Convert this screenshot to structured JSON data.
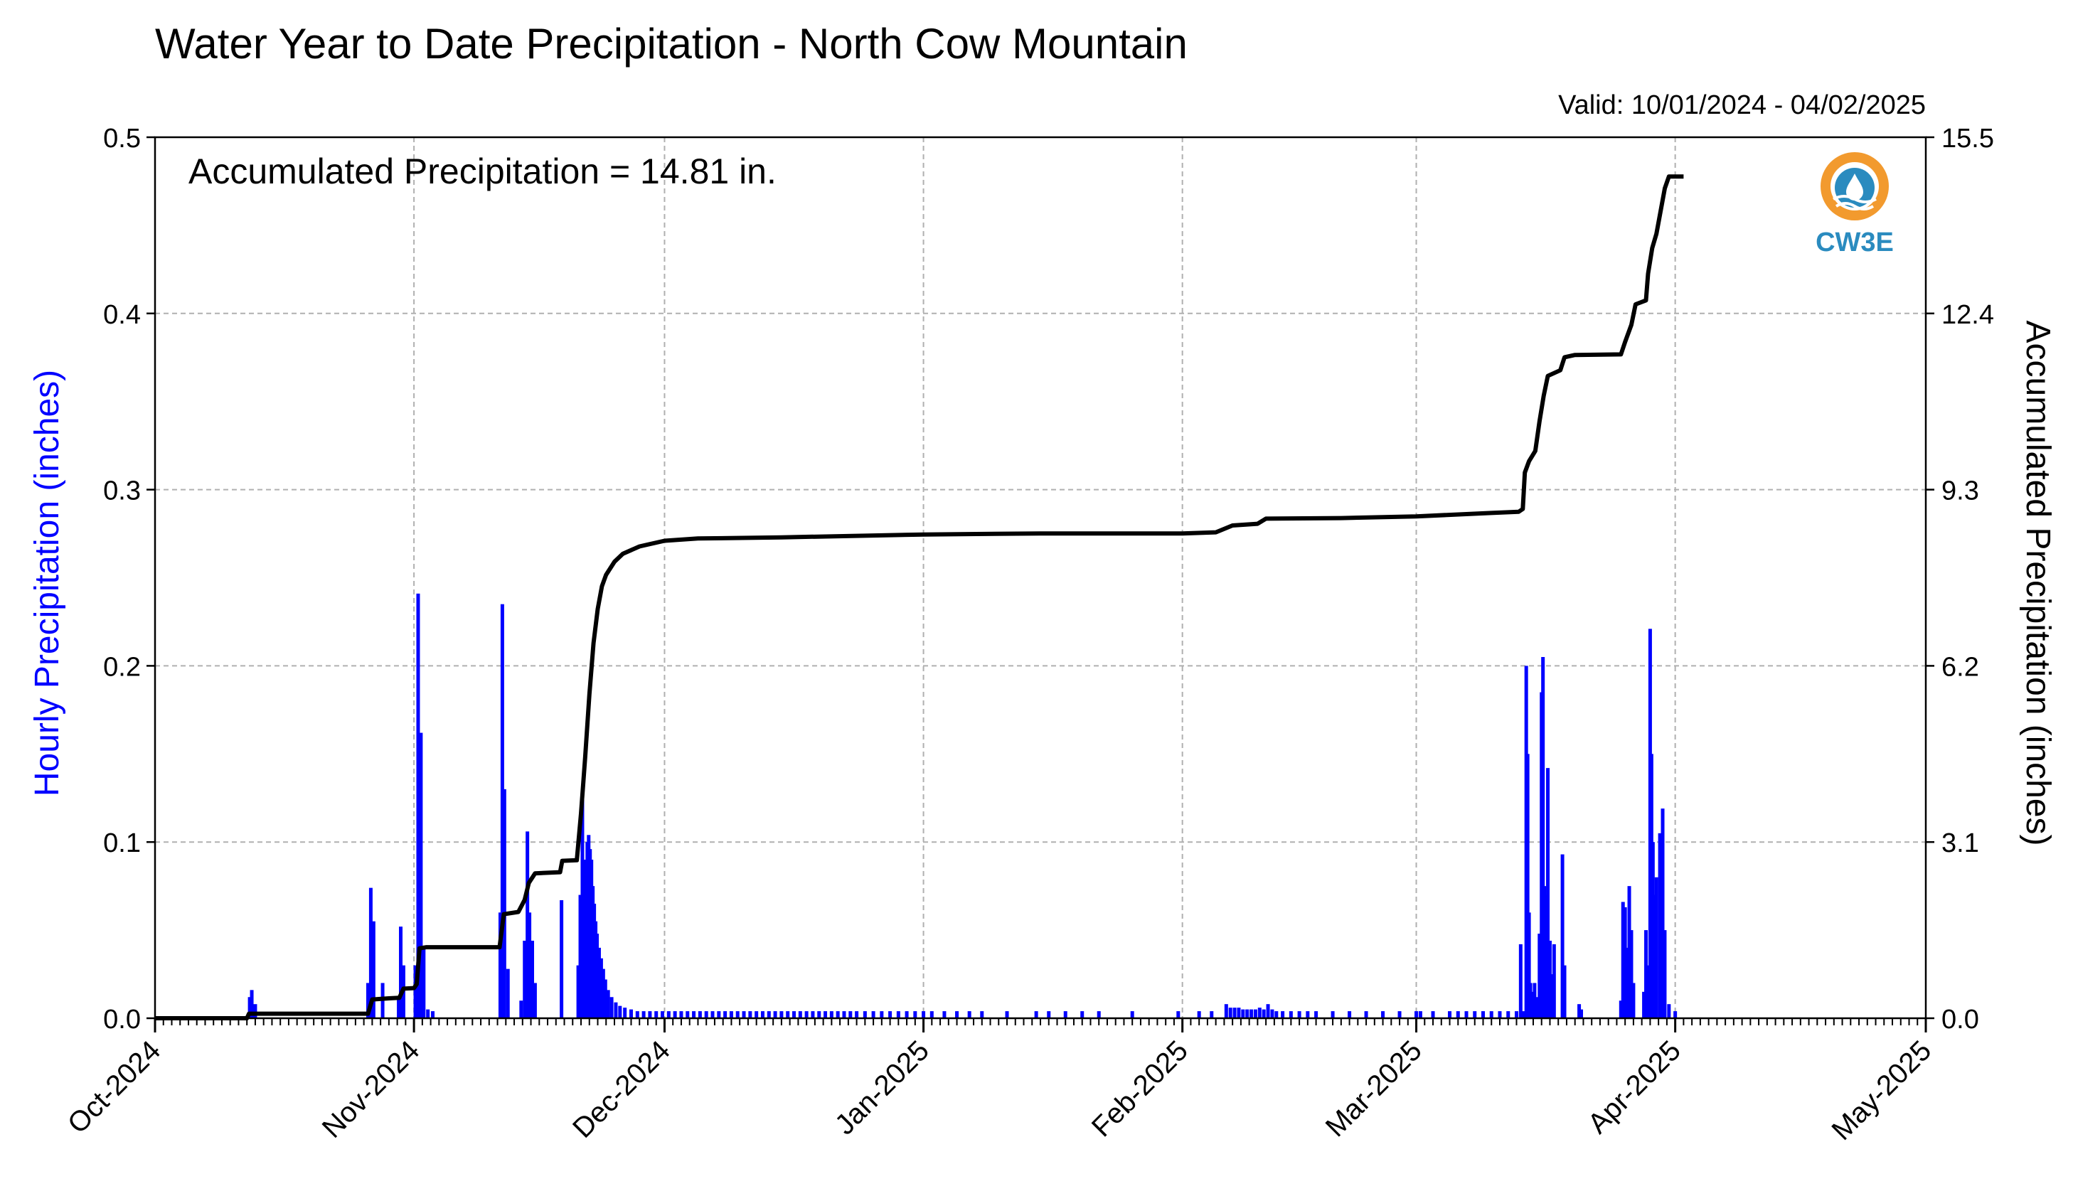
{
  "colors": {
    "hourly": "#0000ff",
    "accumulated": "#000000",
    "grid": "#b0b0b0",
    "logo_orange": "#f29a2e",
    "logo_blue": "#2a8bbf"
  },
  "chart_data": {
    "type": "bar+line",
    "title": "Water Year to Date Precipitation - North Cow Mountain",
    "subtitle": "Valid: 10/01/2024 - 04/02/2025",
    "annotation": "Accumulated Precipitation = 14.81 in.",
    "ylabel_left": "Hourly Precipitation (inches)",
    "ylabel_right": "Accumulated Precipitation (inches)",
    "x_range": [
      "2024-10-01",
      "2025-05-01"
    ],
    "x_tick_labels": [
      "Oct-2024",
      "Nov-2024",
      "Dec-2024",
      "Jan-2025",
      "Feb-2025",
      "Mar-2025",
      "Apr-2025",
      "May-2025"
    ],
    "x_tick_dates": [
      "2024-10-01",
      "2024-11-01",
      "2024-12-01",
      "2025-01-01",
      "2025-02-01",
      "2025-03-01",
      "2025-04-01",
      "2025-05-01"
    ],
    "ylim_left": [
      0,
      0.5
    ],
    "yticks_left": [
      "0.0",
      "0.1",
      "0.2",
      "0.3",
      "0.4",
      "0.5"
    ],
    "yticks_left_values": [
      0,
      0.1,
      0.2,
      0.3,
      0.4,
      0.5
    ],
    "ylim_right": [
      0,
      15.5
    ],
    "yticks_right": [
      "0.0",
      "3.1",
      "6.2",
      "9.3",
      "12.4",
      "15.5"
    ],
    "yticks_right_values": [
      0,
      3.1,
      6.2,
      9.3,
      12.4,
      15.5
    ],
    "grid": true,
    "hourly_series": {
      "name": "Hourly Precipitation",
      "points": [
        [
          "2024-10-12T08:00",
          0.012
        ],
        [
          "2024-10-12T14:00",
          0.016
        ],
        [
          "2024-10-13T00:00",
          0.008
        ],
        [
          "2024-10-26T12:00",
          0.02
        ],
        [
          "2024-10-26T20:00",
          0.074
        ],
        [
          "2024-10-27T04:00",
          0.055
        ],
        [
          "2024-10-28T06:00",
          0.02
        ],
        [
          "2024-10-30T04:00",
          0.012
        ],
        [
          "2024-10-30T10:00",
          0.052
        ],
        [
          "2024-10-30T18:00",
          0.03
        ],
        [
          "2024-11-01T04:00",
          0.03
        ],
        [
          "2024-11-01T12:00",
          0.241
        ],
        [
          "2024-11-01T20:00",
          0.162
        ],
        [
          "2024-11-02T04:00",
          0.04
        ],
        [
          "2024-11-02T16:00",
          0.005
        ],
        [
          "2024-11-03T06:00",
          0.004
        ],
        [
          "2024-11-11T08:00",
          0.06
        ],
        [
          "2024-11-11T14:00",
          0.235
        ],
        [
          "2024-11-11T20:00",
          0.13
        ],
        [
          "2024-11-12T06:00",
          0.028
        ],
        [
          "2024-11-13T20:00",
          0.01
        ],
        [
          "2024-11-14T06:00",
          0.044
        ],
        [
          "2024-11-14T14:00",
          0.106
        ],
        [
          "2024-11-14T20:00",
          0.06
        ],
        [
          "2024-11-15T04:00",
          0.044
        ],
        [
          "2024-11-15T12:00",
          0.02
        ],
        [
          "2024-11-18T16:00",
          0.067
        ],
        [
          "2024-11-20T16:00",
          0.03
        ],
        [
          "2024-11-20T22:00",
          0.07
        ],
        [
          "2024-11-21T04:00",
          0.125
        ],
        [
          "2024-11-21T10:00",
          0.09
        ],
        [
          "2024-11-21T14:00",
          0.06
        ],
        [
          "2024-11-21T18:00",
          0.1
        ],
        [
          "2024-11-21T22:00",
          0.104
        ],
        [
          "2024-11-22T02:00",
          0.096
        ],
        [
          "2024-11-22T06:00",
          0.09
        ],
        [
          "2024-11-22T10:00",
          0.075
        ],
        [
          "2024-11-22T14:00",
          0.065
        ],
        [
          "2024-11-22T18:00",
          0.055
        ],
        [
          "2024-11-22T22:00",
          0.048
        ],
        [
          "2024-11-23T04:00",
          0.04
        ],
        [
          "2024-11-23T10:00",
          0.034
        ],
        [
          "2024-11-23T16:00",
          0.028
        ],
        [
          "2024-11-23T22:00",
          0.022
        ],
        [
          "2024-11-24T06:00",
          0.016
        ],
        [
          "2024-11-24T16:00",
          0.012
        ],
        [
          "2024-11-25T04:00",
          0.009
        ],
        [
          "2024-11-25T16:00",
          0.007
        ],
        [
          "2024-11-26T06:00",
          0.006
        ],
        [
          "2024-11-27T00:00",
          0.005
        ],
        [
          "2024-11-27T18:00",
          0.004
        ],
        [
          "2024-11-28T12:00",
          0.004
        ],
        [
          "2024-11-29T06:00",
          0.004
        ],
        [
          "2024-11-30T00:00",
          0.004
        ],
        [
          "2024-11-30T18:00",
          0.004
        ],
        [
          "2024-12-01T12:00",
          0.004
        ],
        [
          "2024-12-02T06:00",
          0.004
        ],
        [
          "2024-12-03T00:00",
          0.004
        ],
        [
          "2024-12-03T18:00",
          0.004
        ],
        [
          "2024-12-04T12:00",
          0.004
        ],
        [
          "2024-12-05T06:00",
          0.004
        ],
        [
          "2024-12-06T00:00",
          0.004
        ],
        [
          "2024-12-06T18:00",
          0.004
        ],
        [
          "2024-12-07T12:00",
          0.004
        ],
        [
          "2024-12-08T06:00",
          0.004
        ],
        [
          "2024-12-09T00:00",
          0.004
        ],
        [
          "2024-12-09T18:00",
          0.004
        ],
        [
          "2024-12-10T12:00",
          0.004
        ],
        [
          "2024-12-11T06:00",
          0.004
        ],
        [
          "2024-12-12T00:00",
          0.004
        ],
        [
          "2024-12-12T18:00",
          0.004
        ],
        [
          "2024-12-13T12:00",
          0.004
        ],
        [
          "2024-12-14T06:00",
          0.004
        ],
        [
          "2024-12-15T00:00",
          0.004
        ],
        [
          "2024-12-15T18:00",
          0.004
        ],
        [
          "2024-12-16T12:00",
          0.004
        ],
        [
          "2024-12-17T06:00",
          0.004
        ],
        [
          "2024-12-18T00:00",
          0.004
        ],
        [
          "2024-12-18T18:00",
          0.004
        ],
        [
          "2024-12-19T12:00",
          0.004
        ],
        [
          "2024-12-20T06:00",
          0.004
        ],
        [
          "2024-12-21T00:00",
          0.004
        ],
        [
          "2024-12-21T18:00",
          0.004
        ],
        [
          "2024-12-22T12:00",
          0.004
        ],
        [
          "2024-12-23T06:00",
          0.004
        ],
        [
          "2024-12-24T00:00",
          0.004
        ],
        [
          "2024-12-25T00:00",
          0.004
        ],
        [
          "2024-12-26T00:00",
          0.004
        ],
        [
          "2024-12-27T00:00",
          0.004
        ],
        [
          "2024-12-28T00:00",
          0.004
        ],
        [
          "2024-12-29T00:00",
          0.004
        ],
        [
          "2024-12-30T00:00",
          0.004
        ],
        [
          "2024-12-31T00:00",
          0.004
        ],
        [
          "2025-01-01T00:00",
          0.004
        ],
        [
          "2025-01-02T00:00",
          0.004
        ],
        [
          "2025-01-03T12:00",
          0.004
        ],
        [
          "2025-01-05T00:00",
          0.004
        ],
        [
          "2025-01-06T12:00",
          0.004
        ],
        [
          "2025-01-08T00:00",
          0.004
        ],
        [
          "2025-01-11T00:00",
          0.004
        ],
        [
          "2025-01-14T12:00",
          0.004
        ],
        [
          "2025-01-16T00:00",
          0.004
        ],
        [
          "2025-01-18T00:00",
          0.004
        ],
        [
          "2025-01-20T00:00",
          0.004
        ],
        [
          "2025-01-22T00:00",
          0.004
        ],
        [
          "2025-01-26T00:00",
          0.004
        ],
        [
          "2025-01-31T12:00",
          0.004
        ],
        [
          "2025-02-03T00:00",
          0.004
        ],
        [
          "2025-02-04T12:00",
          0.004
        ],
        [
          "2025-02-06T06:00",
          0.008
        ],
        [
          "2025-02-06T18:00",
          0.006
        ],
        [
          "2025-02-07T06:00",
          0.006
        ],
        [
          "2025-02-07T18:00",
          0.006
        ],
        [
          "2025-02-08T06:00",
          0.005
        ],
        [
          "2025-02-08T18:00",
          0.005
        ],
        [
          "2025-02-09T06:00",
          0.005
        ],
        [
          "2025-02-09T18:00",
          0.005
        ],
        [
          "2025-02-10T06:00",
          0.006
        ],
        [
          "2025-02-10T18:00",
          0.005
        ],
        [
          "2025-02-11T06:00",
          0.008
        ],
        [
          "2025-02-11T18:00",
          0.005
        ],
        [
          "2025-02-12T06:00",
          0.004
        ],
        [
          "2025-02-13T00:00",
          0.004
        ],
        [
          "2025-02-14T00:00",
          0.004
        ],
        [
          "2025-02-15T00:00",
          0.004
        ],
        [
          "2025-02-16T00:00",
          0.004
        ],
        [
          "2025-02-17T00:00",
          0.004
        ],
        [
          "2025-02-19T00:00",
          0.004
        ],
        [
          "2025-02-21T00:00",
          0.004
        ],
        [
          "2025-02-23T00:00",
          0.004
        ],
        [
          "2025-02-25T00:00",
          0.004
        ],
        [
          "2025-02-27T00:00",
          0.004
        ],
        [
          "2025-03-01T00:00",
          0.004
        ],
        [
          "2025-03-01T12:00",
          0.004
        ],
        [
          "2025-03-03T00:00",
          0.004
        ],
        [
          "2025-03-05T00:00",
          0.004
        ],
        [
          "2025-03-06T00:00",
          0.004
        ],
        [
          "2025-03-07T00:00",
          0.004
        ],
        [
          "2025-03-08T00:00",
          0.004
        ],
        [
          "2025-03-09T00:00",
          0.004
        ],
        [
          "2025-03-10T00:00",
          0.004
        ],
        [
          "2025-03-11T00:00",
          0.004
        ],
        [
          "2025-03-12T00:00",
          0.004
        ],
        [
          "2025-03-13T00:00",
          0.004
        ],
        [
          "2025-03-13T12:00",
          0.042
        ],
        [
          "2025-03-13T20:00",
          0.004
        ],
        [
          "2025-03-14T04:00",
          0.2
        ],
        [
          "2025-03-14T08:00",
          0.15
        ],
        [
          "2025-03-14T12:00",
          0.06
        ],
        [
          "2025-03-14T16:00",
          0.02
        ],
        [
          "2025-03-14T20:00",
          0.015
        ],
        [
          "2025-03-15T04:00",
          0.02
        ],
        [
          "2025-03-15T12:00",
          0.012
        ],
        [
          "2025-03-15T18:00",
          0.048
        ],
        [
          "2025-03-16T00:00",
          0.185
        ],
        [
          "2025-03-16T04:00",
          0.205
        ],
        [
          "2025-03-16T08:00",
          0.075
        ],
        [
          "2025-03-16T12:00",
          0.07
        ],
        [
          "2025-03-16T18:00",
          0.142
        ],
        [
          "2025-03-17T00:00",
          0.044
        ],
        [
          "2025-03-17T06:00",
          0.025
        ],
        [
          "2025-03-17T12:00",
          0.042
        ],
        [
          "2025-03-18T12:00",
          0.093
        ],
        [
          "2025-03-18T18:00",
          0.03
        ],
        [
          "2025-03-20T12:00",
          0.008
        ],
        [
          "2025-03-20T18:00",
          0.005
        ],
        [
          "2025-03-25T12:00",
          0.01
        ],
        [
          "2025-03-25T18:00",
          0.066
        ],
        [
          "2025-03-26T00:00",
          0.063
        ],
        [
          "2025-03-26T06:00",
          0.04
        ],
        [
          "2025-03-26T12:00",
          0.075
        ],
        [
          "2025-03-26T18:00",
          0.05
        ],
        [
          "2025-03-27T00:00",
          0.02
        ],
        [
          "2025-03-28T06:00",
          0.015
        ],
        [
          "2025-03-28T12:00",
          0.05
        ],
        [
          "2025-03-28T18:00",
          0.03
        ],
        [
          "2025-03-29T00:00",
          0.221
        ],
        [
          "2025-03-29T04:00",
          0.15
        ],
        [
          "2025-03-29T08:00",
          0.1
        ],
        [
          "2025-03-29T12:00",
          0.07
        ],
        [
          "2025-03-29T18:00",
          0.08
        ],
        [
          "2025-03-30T04:00",
          0.105
        ],
        [
          "2025-03-30T12:00",
          0.119
        ],
        [
          "2025-03-30T18:00",
          0.05
        ],
        [
          "2025-03-31T06:00",
          0.008
        ],
        [
          "2025-04-01T00:00",
          0.004
        ]
      ]
    },
    "accumulated_series": {
      "name": "Accumulated Precipitation",
      "points": [
        [
          "2024-10-01T00:00",
          0.0
        ],
        [
          "2024-10-12T00:00",
          0.0
        ],
        [
          "2024-10-12T06:00",
          0.08
        ],
        [
          "2024-10-26T12:00",
          0.08
        ],
        [
          "2024-10-27T00:00",
          0.33
        ],
        [
          "2024-10-29T00:00",
          0.35
        ],
        [
          "2024-10-30T06:00",
          0.36
        ],
        [
          "2024-10-30T18:00",
          0.52
        ],
        [
          "2024-11-01T00:00",
          0.53
        ],
        [
          "2024-11-01T08:00",
          0.6
        ],
        [
          "2024-11-01T16:00",
          1.23
        ],
        [
          "2024-11-02T12:00",
          1.25
        ],
        [
          "2024-11-11T06:00",
          1.25
        ],
        [
          "2024-11-11T18:00",
          1.83
        ],
        [
          "2024-11-13T12:00",
          1.87
        ],
        [
          "2024-11-14T06:00",
          2.08
        ],
        [
          "2024-11-14T18:00",
          2.38
        ],
        [
          "2024-11-15T12:00",
          2.55
        ],
        [
          "2024-11-18T12:00",
          2.57
        ],
        [
          "2024-11-18T18:00",
          2.77
        ],
        [
          "2024-11-20T12:00",
          2.78
        ],
        [
          "2024-11-21T00:00",
          3.6
        ],
        [
          "2024-11-21T12:00",
          4.6
        ],
        [
          "2024-11-22T00:00",
          5.7
        ],
        [
          "2024-11-22T12:00",
          6.6
        ],
        [
          "2024-11-23T00:00",
          7.2
        ],
        [
          "2024-11-23T12:00",
          7.6
        ],
        [
          "2024-11-24T00:00",
          7.8
        ],
        [
          "2024-11-25T00:00",
          8.03
        ],
        [
          "2024-11-26T00:00",
          8.17
        ],
        [
          "2024-11-28T00:00",
          8.3
        ],
        [
          "2024-12-01T00:00",
          8.4
        ],
        [
          "2024-12-05T00:00",
          8.44
        ],
        [
          "2024-12-15T00:00",
          8.46
        ],
        [
          "2025-01-01T00:00",
          8.51
        ],
        [
          "2025-01-15T00:00",
          8.53
        ],
        [
          "2025-02-01T00:00",
          8.53
        ],
        [
          "2025-02-05T00:00",
          8.55
        ],
        [
          "2025-02-07T00:00",
          8.67
        ],
        [
          "2025-02-10T00:00",
          8.7
        ],
        [
          "2025-02-11T00:00",
          8.79
        ],
        [
          "2025-02-20T00:00",
          8.8
        ],
        [
          "2025-03-01T00:00",
          8.83
        ],
        [
          "2025-03-10T00:00",
          8.89
        ],
        [
          "2025-03-13T06:00",
          8.91
        ],
        [
          "2025-03-13T18:00",
          8.96
        ],
        [
          "2025-03-14T00:00",
          9.6
        ],
        [
          "2025-03-14T12:00",
          9.8
        ],
        [
          "2025-03-15T06:00",
          9.98
        ],
        [
          "2025-03-15T18:00",
          10.5
        ],
        [
          "2025-03-16T06:00",
          10.95
        ],
        [
          "2025-03-16T18:00",
          11.3
        ],
        [
          "2025-03-17T12:00",
          11.35
        ],
        [
          "2025-03-18T06:00",
          11.4
        ],
        [
          "2025-03-18T18:00",
          11.63
        ],
        [
          "2025-03-20T00:00",
          11.67
        ],
        [
          "2025-03-25T12:00",
          11.68
        ],
        [
          "2025-03-26T00:00",
          11.9
        ],
        [
          "2025-03-26T18:00",
          12.2
        ],
        [
          "2025-03-27T06:00",
          12.56
        ],
        [
          "2025-03-28T12:00",
          12.63
        ],
        [
          "2025-03-28T18:00",
          13.1
        ],
        [
          "2025-03-29T06:00",
          13.55
        ],
        [
          "2025-03-29T18:00",
          13.8
        ],
        [
          "2025-03-30T06:00",
          14.2
        ],
        [
          "2025-03-30T18:00",
          14.6
        ],
        [
          "2025-03-31T06:00",
          14.81
        ],
        [
          "2025-04-02T00:00",
          14.81
        ]
      ]
    }
  },
  "logo": {
    "text": "CW3E",
    "icon": "cw3e-logo-icon"
  }
}
